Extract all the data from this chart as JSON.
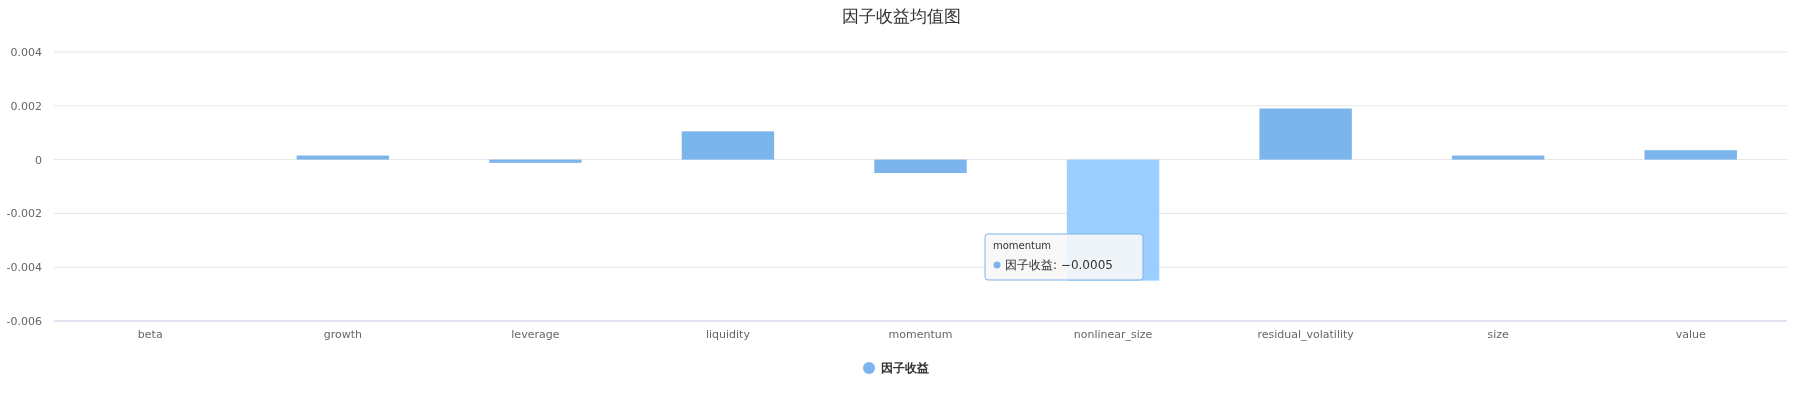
{
  "chart_data": {
    "type": "bar",
    "title": "因子收益均值图",
    "categories": [
      "beta",
      "growth",
      "leverage",
      "liquidity",
      "momentum",
      "nonlinear_size",
      "residual_volatility",
      "size",
      "value"
    ],
    "series": [
      {
        "name": "因子收益",
        "color": "#7cb5ec",
        "colors": [
          "#7cb5ec",
          "#7cb5ec",
          "#7cb5ec",
          "#7cb5ec",
          "#7cb5ec",
          "#9ccfff",
          "#7cb5ec",
          "#7cb5ec",
          "#7cb5ec"
        ],
        "values": [
          0,
          0.00015,
          -0.00012,
          0.00105,
          -0.0005,
          -0.0045,
          0.0019,
          0.00015,
          0.00035
        ]
      }
    ],
    "ylim": [
      -0.006,
      0.004
    ],
    "yticks": [
      {
        "value": -0.006,
        "label": "-0.006"
      },
      {
        "value": -0.004,
        "label": "-0.004"
      },
      {
        "value": -0.002,
        "label": "-0.002"
      },
      0,
      0.002,
      0.004
    ],
    "grid": "y",
    "legend": "bottom",
    "annotations": [
      "momentum\n因子收益: −0.0005"
    ]
  }
}
